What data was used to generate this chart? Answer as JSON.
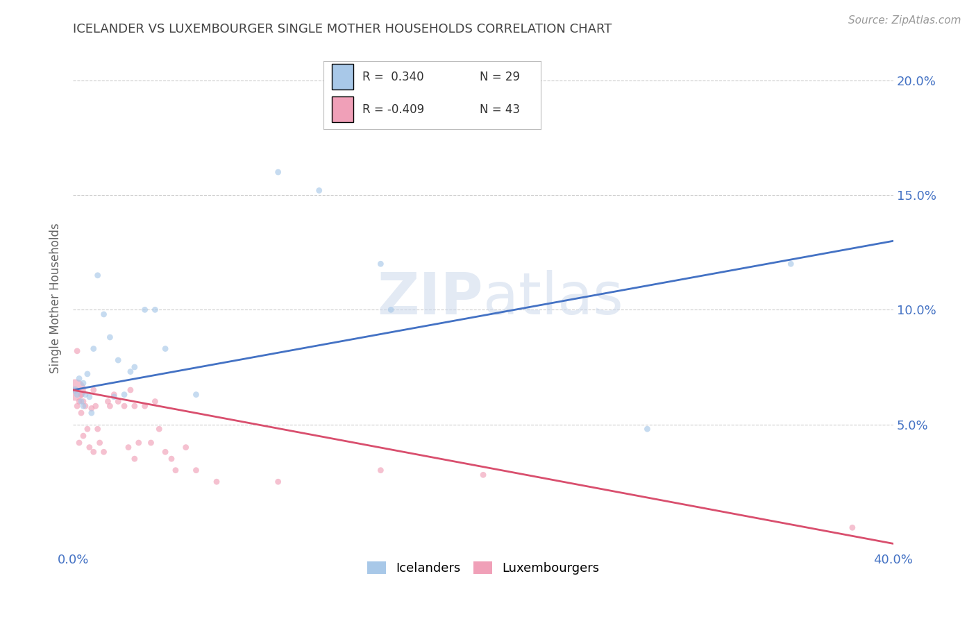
{
  "title": "ICELANDER VS LUXEMBOURGER SINGLE MOTHER HOUSEHOLDS CORRELATION CHART",
  "source": "Source: ZipAtlas.com",
  "ylabel": "Single Mother Households",
  "xlim": [
    0.0,
    0.4
  ],
  "ylim": [
    -0.005,
    0.215
  ],
  "xticks": [
    0.0,
    0.1,
    0.2,
    0.3,
    0.4
  ],
  "xtick_labels": [
    "0.0%",
    "",
    "",
    "",
    "40.0%"
  ],
  "yticks": [
    0.05,
    0.1,
    0.15,
    0.2
  ],
  "ytick_labels": [
    "5.0%",
    "10.0%",
    "15.0%",
    "20.0%"
  ],
  "grid_color": "#cccccc",
  "background_color": "#ffffff",
  "icelanders": {
    "color": "#a8c8e8",
    "R": 0.34,
    "N": 29,
    "x": [
      0.001,
      0.002,
      0.003,
      0.004,
      0.005,
      0.005,
      0.006,
      0.007,
      0.008,
      0.009,
      0.01,
      0.012,
      0.015,
      0.018,
      0.02,
      0.022,
      0.025,
      0.028,
      0.03,
      0.035,
      0.04,
      0.045,
      0.06,
      0.1,
      0.12,
      0.15,
      0.155,
      0.28,
      0.35
    ],
    "y": [
      0.065,
      0.063,
      0.07,
      0.06,
      0.068,
      0.058,
      0.063,
      0.072,
      0.062,
      0.055,
      0.083,
      0.115,
      0.098,
      0.088,
      0.062,
      0.078,
      0.063,
      0.073,
      0.075,
      0.1,
      0.1,
      0.083,
      0.063,
      0.16,
      0.152,
      0.12,
      0.1,
      0.048,
      0.12
    ],
    "sizes": [
      60,
      40,
      40,
      40,
      40,
      40,
      40,
      40,
      40,
      40,
      40,
      40,
      40,
      40,
      40,
      40,
      40,
      40,
      40,
      40,
      40,
      40,
      40,
      40,
      40,
      40,
      40,
      40,
      40
    ]
  },
  "luxembourgers": {
    "color": "#f0a0b8",
    "R": -0.409,
    "N": 43,
    "x": [
      0.001,
      0.002,
      0.002,
      0.003,
      0.003,
      0.004,
      0.004,
      0.005,
      0.005,
      0.006,
      0.007,
      0.008,
      0.009,
      0.01,
      0.01,
      0.011,
      0.012,
      0.013,
      0.015,
      0.017,
      0.018,
      0.02,
      0.022,
      0.025,
      0.027,
      0.028,
      0.03,
      0.03,
      0.032,
      0.035,
      0.038,
      0.04,
      0.042,
      0.045,
      0.048,
      0.05,
      0.055,
      0.06,
      0.07,
      0.1,
      0.15,
      0.2,
      0.38
    ],
    "y": [
      0.065,
      0.082,
      0.058,
      0.06,
      0.042,
      0.055,
      0.063,
      0.06,
      0.045,
      0.058,
      0.048,
      0.04,
      0.057,
      0.065,
      0.038,
      0.058,
      0.048,
      0.042,
      0.038,
      0.06,
      0.058,
      0.063,
      0.06,
      0.058,
      0.04,
      0.065,
      0.058,
      0.035,
      0.042,
      0.058,
      0.042,
      0.06,
      0.048,
      0.038,
      0.035,
      0.03,
      0.04,
      0.03,
      0.025,
      0.025,
      0.03,
      0.028,
      0.005
    ],
    "sizes": [
      500,
      40,
      40,
      40,
      40,
      40,
      40,
      40,
      40,
      40,
      40,
      40,
      40,
      40,
      40,
      40,
      40,
      40,
      40,
      40,
      40,
      40,
      40,
      40,
      40,
      40,
      40,
      40,
      40,
      40,
      40,
      40,
      40,
      40,
      40,
      40,
      40,
      40,
      40,
      40,
      40,
      40,
      40
    ]
  },
  "blue_line": {
    "x0": 0.0,
    "y0": 0.065,
    "x1": 0.4,
    "y1": 0.13
  },
  "pink_line": {
    "x0": 0.0,
    "y0": 0.065,
    "x1": 0.4,
    "y1": -0.002
  },
  "watermark_zip": "ZIP",
  "watermark_atlas": "atlas",
  "legend_blue_R": "R =  0.340",
  "legend_blue_N": "N = 29",
  "legend_pink_R": "R = -0.409",
  "legend_pink_N": "N = 43",
  "legend_R_color": "#333333",
  "legend_N_color": "#333333",
  "title_color": "#444444",
  "axis_color": "#4472c4",
  "ylabel_color": "#666666"
}
